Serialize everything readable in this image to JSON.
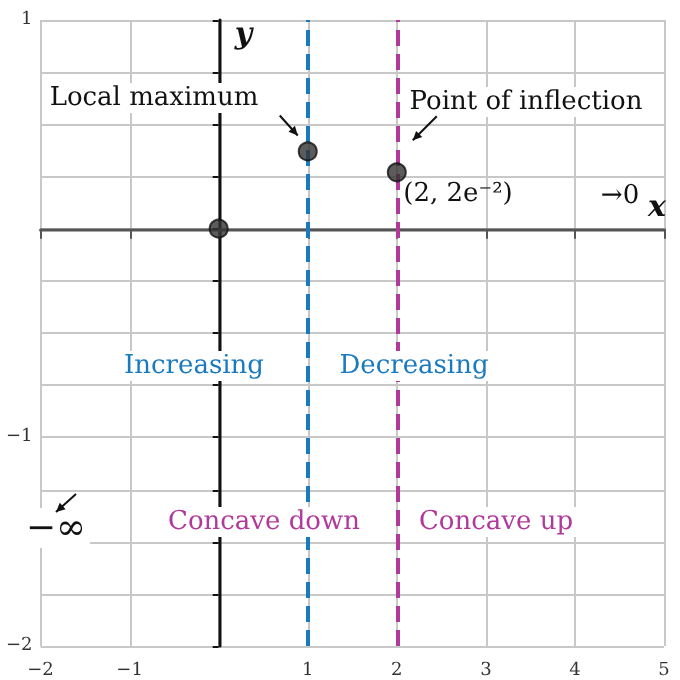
{
  "chart_data": {
    "type": "scatter",
    "xlabel": "x",
    "ylabel": "y",
    "x": [
      0,
      1,
      2
    ],
    "series": [
      {
        "color": "#333333",
        "values": [
          0,
          0.37,
          0.27
        ]
      }
    ],
    "xlim": [
      -2,
      5
    ],
    "xticks": [
      -2,
      -1,
      {
        "value": 0,
        "label": null
      },
      1,
      2,
      3,
      4,
      5
    ],
    "ylim": [
      -2,
      1
    ],
    "yticks": [
      -2,
      {
        "value": -1.75,
        "label": null
      },
      {
        "value": -1.5,
        "label": null
      },
      {
        "value": -1.25,
        "label": null
      },
      -1,
      {
        "value": -0.75,
        "label": null
      },
      {
        "value": -0.5,
        "label": null
      },
      {
        "value": -0.25,
        "label": null
      },
      {
        "value": 0,
        "label": null
      },
      {
        "value": 0.25,
        "label": null
      },
      {
        "value": 0.5,
        "label": null
      },
      {
        "value": 0.75,
        "label": null
      },
      1
    ],
    "grid": true,
    "marker": "circle",
    "ref_lines": [
      {
        "axis": "x",
        "value": 1,
        "label": null,
        "color": "#1a7ac0",
        "line_style": "dashed"
      },
      {
        "axis": "x",
        "value": 2,
        "label": null,
        "color": "#b0399b",
        "line_style": "dashed"
      }
    ],
    "annotations": [
      "Local maximum",
      "Point of inflection",
      "(2, 2e⁻²)",
      "→0",
      "Increasing",
      "Decreasing",
      "Concave down",
      "Concave up",
      "−∞"
    ]
  }
}
